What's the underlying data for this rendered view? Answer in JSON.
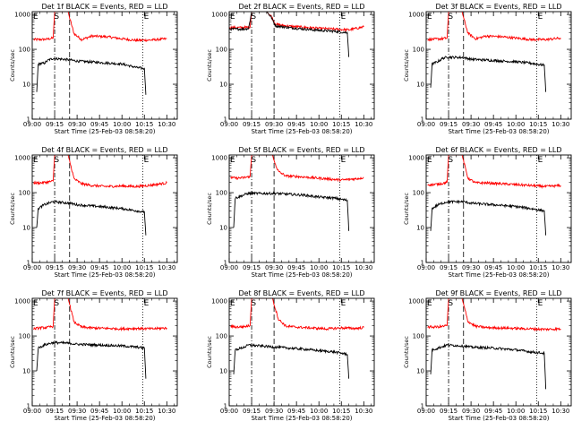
{
  "figure": {
    "colors": {
      "events": "#000000",
      "lld": "#ff0000",
      "axes": "#000000",
      "background": "#ffffff"
    }
  },
  "chart_data": [
    {
      "type": "line",
      "title": "Det 1f BLACK = Events, RED = LLD",
      "xlabel": "Start Time (25-Feb-03 08:58:20)",
      "ylabel": "Counts/sec",
      "xticks": [
        "09:00",
        "09:15",
        "09:30",
        "09:45",
        "10:00",
        "10:15",
        "10:30"
      ],
      "yticks": [
        "1",
        "10",
        "100",
        "1000"
      ],
      "ylim": [
        1,
        1200
      ],
      "yscale": "log",
      "markers": [
        {
          "label": "E",
          "x": "09:00"
        },
        {
          "label": "S",
          "x": "09:14"
        },
        {
          "label": "E",
          "x": "10:14"
        }
      ],
      "vlines": [
        {
          "x": "09:15",
          "style": "dash-dot"
        },
        {
          "x": "09:25",
          "style": "dashed"
        },
        {
          "x": "10:14",
          "style": "dotted"
        }
      ],
      "series": [
        {
          "name": "LLD",
          "x": [
            "09:01",
            "09:05",
            "09:10",
            "09:14",
            "09:15",
            "09:24",
            "09:25",
            "09:28",
            "09:33",
            "09:40",
            "09:50",
            "10:00",
            "10:10",
            "10:20",
            "10:30"
          ],
          "y": [
            190,
            190,
            195,
            210,
            1200,
            1200,
            800,
            280,
            190,
            240,
            230,
            200,
            180,
            185,
            200
          ]
        },
        {
          "name": "Events",
          "x": [
            "09:03",
            "09:04",
            "09:08",
            "09:11",
            "09:14",
            "09:25",
            "09:30",
            "09:45",
            "10:00",
            "10:10",
            "10:15",
            "10:16"
          ],
          "y": [
            6,
            38,
            40,
            50,
            55,
            50,
            46,
            42,
            38,
            30,
            28,
            5
          ]
        }
      ]
    },
    {
      "type": "line",
      "title": "Det 2f BLACK = Events, RED = LLD",
      "xlabel": "Start Time (25-Feb-03 08:58:20)",
      "ylabel": "Counts/sec",
      "xticks": [
        "09:00",
        "09:15",
        "09:30",
        "09:45",
        "10:00",
        "10:15",
        "10:30"
      ],
      "yticks": [
        "1",
        "10",
        "100",
        "1000"
      ],
      "ylim": [
        1,
        1200
      ],
      "yscale": "log",
      "markers": [
        {
          "label": "E",
          "x": "09:00"
        },
        {
          "label": "S",
          "x": "09:14"
        },
        {
          "label": "E",
          "x": "10:14"
        }
      ],
      "vlines": [
        {
          "x": "09:15",
          "style": "dash-dot"
        },
        {
          "x": "09:30",
          "style": "dashed"
        },
        {
          "x": "10:14",
          "style": "dotted"
        }
      ],
      "series": [
        {
          "name": "LLD",
          "x": [
            "09:00",
            "09:10",
            "09:14",
            "09:15",
            "09:20",
            "09:25",
            "09:28",
            "09:31",
            "09:40",
            "09:50",
            "10:00",
            "10:10",
            "10:20",
            "10:30"
          ],
          "y": [
            420,
            420,
            440,
            1200,
            1200,
            1200,
            900,
            520,
            460,
            430,
            400,
            380,
            360,
            440
          ]
        },
        {
          "name": "Events",
          "x": [
            "09:00",
            "09:10",
            "09:13",
            "09:15",
            "09:20",
            "09:25",
            "09:28",
            "09:31",
            "09:40",
            "09:50",
            "10:00",
            "10:10",
            "10:19",
            "10:20"
          ],
          "y": [
            380,
            380,
            400,
            1200,
            1200,
            1200,
            850,
            470,
            420,
            380,
            350,
            330,
            300,
            60
          ]
        }
      ]
    },
    {
      "type": "line",
      "title": "Det 3f BLACK = Events, RED = LLD",
      "xlabel": "Start Time (25-Feb-03 08:58:20)",
      "ylabel": "Counts/sec",
      "xticks": [
        "09:00",
        "09:15",
        "09:30",
        "09:45",
        "10:00",
        "10:15",
        "10:30"
      ],
      "yticks": [
        "1",
        "10",
        "100",
        "1000"
      ],
      "ylim": [
        1,
        1200
      ],
      "yscale": "log",
      "markers": [
        {
          "label": "E",
          "x": "09:00"
        },
        {
          "label": "S",
          "x": "09:14"
        },
        {
          "label": "E",
          "x": "10:14"
        }
      ],
      "vlines": [
        {
          "x": "09:15",
          "style": "dash-dot"
        },
        {
          "x": "09:25",
          "style": "dashed"
        },
        {
          "x": "10:14",
          "style": "dotted"
        }
      ],
      "series": [
        {
          "name": "LLD",
          "x": [
            "09:01",
            "09:05",
            "09:10",
            "09:14",
            "09:15",
            "09:24",
            "09:25",
            "09:28",
            "09:33",
            "09:40",
            "09:50",
            "10:00",
            "10:10",
            "10:20",
            "10:30"
          ],
          "y": [
            190,
            195,
            200,
            210,
            1200,
            1200,
            800,
            290,
            200,
            240,
            230,
            210,
            190,
            190,
            210
          ]
        },
        {
          "name": "Events",
          "x": [
            "09:03",
            "09:04",
            "09:08",
            "09:11",
            "09:14",
            "09:25",
            "09:30",
            "09:45",
            "10:00",
            "10:10",
            "10:19",
            "10:20"
          ],
          "y": [
            8,
            38,
            45,
            55,
            60,
            58,
            52,
            48,
            44,
            40,
            35,
            6
          ]
        }
      ]
    },
    {
      "type": "line",
      "title": "Det 4f BLACK = Events, RED = LLD",
      "xlabel": "Start Time (25-Feb-03 08:58:20)",
      "ylabel": "Counts/sec",
      "xticks": [
        "09:00",
        "09:15",
        "09:30",
        "09:45",
        "10:00",
        "10:15",
        "10:30"
      ],
      "yticks": [
        "1",
        "10",
        "100",
        "1000"
      ],
      "ylim": [
        1,
        1200
      ],
      "yscale": "log",
      "markers": [
        {
          "label": "E",
          "x": "09:00"
        },
        {
          "label": "S",
          "x": "09:14"
        },
        {
          "label": "E",
          "x": "10:14"
        }
      ],
      "vlines": [
        {
          "x": "09:15",
          "style": "dash-dot"
        },
        {
          "x": "09:25",
          "style": "dashed"
        },
        {
          "x": "10:14",
          "style": "dotted"
        }
      ],
      "series": [
        {
          "name": "LLD",
          "x": [
            "09:01",
            "09:05",
            "09:10",
            "09:14",
            "09:15",
            "09:24",
            "09:25",
            "09:28",
            "09:33",
            "09:40",
            "09:50",
            "10:00",
            "10:10",
            "10:20",
            "10:30"
          ],
          "y": [
            190,
            190,
            200,
            215,
            1200,
            1200,
            800,
            250,
            180,
            160,
            150,
            155,
            150,
            165,
            190
          ]
        },
        {
          "name": "Events",
          "x": [
            "09:03",
            "09:04",
            "09:08",
            "09:11",
            "09:14",
            "09:25",
            "09:30",
            "09:45",
            "10:00",
            "10:10",
            "10:15",
            "10:16"
          ],
          "y": [
            10,
            35,
            45,
            50,
            55,
            50,
            45,
            40,
            35,
            30,
            28,
            6
          ]
        }
      ]
    },
    {
      "type": "line",
      "title": "Det 5f BLACK = Events, RED = LLD",
      "xlabel": "Start Time (25-Feb-03 08:58:20)",
      "ylabel": "Counts/sec",
      "xticks": [
        "09:00",
        "09:15",
        "09:30",
        "09:45",
        "10:00",
        "10:15",
        "10:30"
      ],
      "yticks": [
        "1",
        "10",
        "100",
        "1000"
      ],
      "ylim": [
        1,
        1200
      ],
      "yscale": "log",
      "markers": [
        {
          "label": "E",
          "x": "09:00"
        },
        {
          "label": "S",
          "x": "09:14"
        },
        {
          "label": "E",
          "x": "10:14"
        }
      ],
      "vlines": [
        {
          "x": "09:15",
          "style": "dash-dot"
        },
        {
          "x": "09:30",
          "style": "dashed"
        },
        {
          "x": "10:14",
          "style": "dotted"
        }
      ],
      "series": [
        {
          "name": "LLD",
          "x": [
            "09:01",
            "09:05",
            "09:10",
            "09:14",
            "09:15",
            "09:29",
            "09:30",
            "09:33",
            "09:38",
            "09:45",
            "09:55",
            "10:05",
            "10:15",
            "10:25",
            "10:30"
          ],
          "y": [
            270,
            260,
            270,
            290,
            1200,
            1200,
            800,
            400,
            300,
            290,
            270,
            250,
            230,
            250,
            270
          ]
        },
        {
          "name": "Events",
          "x": [
            "09:03",
            "09:04",
            "09:08",
            "09:11",
            "09:13",
            "09:31",
            "09:40",
            "09:50",
            "10:00",
            "10:10",
            "10:19",
            "10:20"
          ],
          "y": [
            10,
            70,
            80,
            90,
            95,
            95,
            90,
            85,
            75,
            70,
            60,
            8
          ]
        }
      ]
    },
    {
      "type": "line",
      "title": "Det 6f BLACK = Events, RED = LLD",
      "xlabel": "Start Time (25-Feb-03 08:58:20)",
      "ylabel": "Counts/sec",
      "xticks": [
        "09:00",
        "09:15",
        "09:30",
        "09:45",
        "10:00",
        "10:15",
        "10:30"
      ],
      "yticks": [
        "1",
        "10",
        "100",
        "1000"
      ],
      "ylim": [
        1,
        1200
      ],
      "yscale": "log",
      "markers": [
        {
          "label": "E",
          "x": "09:00"
        },
        {
          "label": "S",
          "x": "09:14"
        },
        {
          "label": "E",
          "x": "10:14"
        }
      ],
      "vlines": [
        {
          "x": "09:15",
          "style": "dash-dot"
        },
        {
          "x": "09:25",
          "style": "dashed"
        },
        {
          "x": "10:14",
          "style": "dotted"
        }
      ],
      "series": [
        {
          "name": "LLD",
          "x": [
            "09:01",
            "09:05",
            "09:10",
            "09:14",
            "09:15",
            "09:24",
            "09:25",
            "09:28",
            "09:33",
            "09:40",
            "09:50",
            "10:00",
            "10:10",
            "10:20",
            "10:30"
          ],
          "y": [
            170,
            170,
            180,
            200,
            1200,
            1200,
            800,
            260,
            190,
            190,
            180,
            170,
            160,
            150,
            160
          ]
        },
        {
          "name": "Events",
          "x": [
            "09:03",
            "09:04",
            "09:08",
            "09:11",
            "09:14",
            "09:25",
            "09:30",
            "09:45",
            "10:00",
            "10:10",
            "10:19",
            "10:20"
          ],
          "y": [
            8,
            35,
            45,
            50,
            55,
            55,
            50,
            45,
            40,
            35,
            30,
            6
          ]
        }
      ]
    },
    {
      "type": "line",
      "title": "Det 7f BLACK = Events, RED = LLD",
      "xlabel": "Start Time (25-Feb-03 08:58:20)",
      "ylabel": "Counts/sec",
      "xticks": [
        "09:00",
        "09:15",
        "09:30",
        "09:45",
        "10:00",
        "10:15",
        "10:30"
      ],
      "yticks": [
        "1",
        "10",
        "100",
        "1000"
      ],
      "ylim": [
        1,
        1200
      ],
      "yscale": "log",
      "markers": [
        {
          "label": "E",
          "x": "09:00"
        },
        {
          "label": "S",
          "x": "09:14"
        },
        {
          "label": "E",
          "x": "10:14"
        }
      ],
      "vlines": [
        {
          "x": "09:15",
          "style": "dash-dot"
        },
        {
          "x": "09:25",
          "style": "dashed"
        },
        {
          "x": "10:14",
          "style": "dotted"
        }
      ],
      "series": [
        {
          "name": "LLD",
          "x": [
            "09:01",
            "09:05",
            "09:10",
            "09:14",
            "09:15",
            "09:24",
            "09:25",
            "09:28",
            "09:33",
            "09:40",
            "09:50",
            "10:00",
            "10:10",
            "10:20",
            "10:30"
          ],
          "y": [
            160,
            170,
            175,
            190,
            1200,
            1200,
            800,
            250,
            180,
            170,
            165,
            160,
            165,
            160,
            170
          ]
        },
        {
          "name": "Events",
          "x": [
            "09:03",
            "09:04",
            "09:08",
            "09:11",
            "09:14",
            "09:25",
            "09:30",
            "09:45",
            "10:00",
            "10:10",
            "10:15",
            "10:16"
          ],
          "y": [
            10,
            45,
            55,
            60,
            65,
            62,
            58,
            55,
            52,
            48,
            45,
            6
          ]
        }
      ]
    },
    {
      "type": "line",
      "title": "Det 8f BLACK = Events, RED = LLD",
      "xlabel": "Start Time (25-Feb-03 08:58:20)",
      "ylabel": "Counts/sec",
      "xticks": [
        "09:00",
        "09:15",
        "09:30",
        "09:45",
        "10:00",
        "10:15",
        "10:30"
      ],
      "yticks": [
        "1",
        "10",
        "100",
        "1000"
      ],
      "ylim": [
        1,
        1200
      ],
      "yscale": "log",
      "markers": [
        {
          "label": "E",
          "x": "09:00"
        },
        {
          "label": "S",
          "x": "09:14"
        },
        {
          "label": "E",
          "x": "10:14"
        }
      ],
      "vlines": [
        {
          "x": "09:15",
          "style": "dash-dot"
        },
        {
          "x": "09:30",
          "style": "dashed"
        },
        {
          "x": "10:14",
          "style": "dotted"
        }
      ],
      "series": [
        {
          "name": "LLD",
          "x": [
            "09:01",
            "09:05",
            "09:10",
            "09:14",
            "09:15",
            "09:29",
            "09:30",
            "09:33",
            "09:38",
            "09:45",
            "09:55",
            "10:05",
            "10:15",
            "10:25",
            "10:30"
          ],
          "y": [
            190,
            180,
            185,
            200,
            1200,
            1200,
            800,
            300,
            190,
            180,
            170,
            160,
            170,
            165,
            175
          ]
        },
        {
          "name": "Events",
          "x": [
            "09:03",
            "09:04",
            "09:08",
            "09:11",
            "09:13",
            "09:31",
            "09:40",
            "09:50",
            "10:00",
            "10:10",
            "10:19",
            "10:20"
          ],
          "y": [
            8,
            40,
            45,
            50,
            55,
            48,
            45,
            42,
            38,
            35,
            30,
            6
          ]
        }
      ]
    },
    {
      "type": "line",
      "title": "Det 9f BLACK = Events, RED = LLD",
      "xlabel": "Start Time (25-Feb-03 08:58:20)",
      "ylabel": "Counts/sec",
      "xticks": [
        "09:00",
        "09:15",
        "09:30",
        "09:45",
        "10:00",
        "10:15",
        "10:30"
      ],
      "yticks": [
        "1",
        "10",
        "100",
        "1000"
      ],
      "ylim": [
        1,
        1200
      ],
      "yscale": "log",
      "markers": [
        {
          "label": "E",
          "x": "09:00"
        },
        {
          "label": "S",
          "x": "09:14"
        },
        {
          "label": "E",
          "x": "10:14"
        }
      ],
      "vlines": [
        {
          "x": "09:15",
          "style": "dash-dot"
        },
        {
          "x": "09:25",
          "style": "dashed"
        },
        {
          "x": "10:14",
          "style": "dotted"
        }
      ],
      "series": [
        {
          "name": "LLD",
          "x": [
            "09:01",
            "09:05",
            "09:10",
            "09:14",
            "09:15",
            "09:24",
            "09:25",
            "09:28",
            "09:33",
            "09:40",
            "09:50",
            "10:00",
            "10:10",
            "10:20",
            "10:30"
          ],
          "y": [
            180,
            180,
            185,
            200,
            1200,
            1200,
            800,
            260,
            190,
            175,
            170,
            165,
            160,
            155,
            160
          ]
        },
        {
          "name": "Events",
          "x": [
            "09:03",
            "09:04",
            "09:08",
            "09:11",
            "09:14",
            "09:25",
            "09:30",
            "09:45",
            "10:00",
            "10:10",
            "10:19",
            "10:20"
          ],
          "y": [
            8,
            40,
            45,
            50,
            55,
            52,
            48,
            45,
            40,
            35,
            32,
            3
          ]
        }
      ]
    }
  ]
}
